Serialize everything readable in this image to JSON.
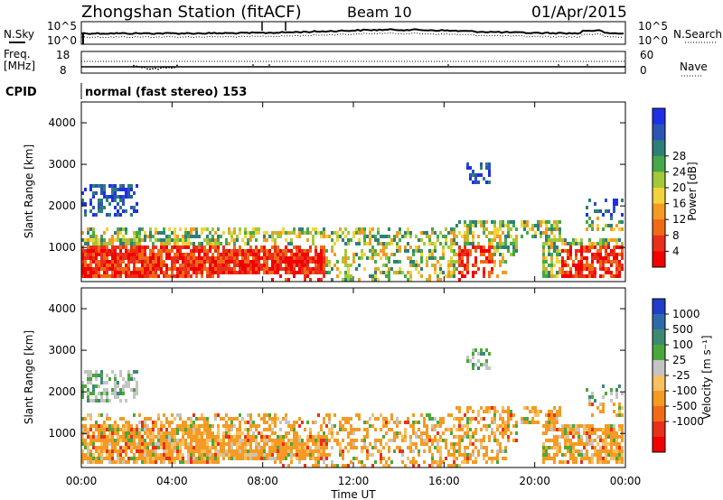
{
  "header": {
    "station": "Zhongshan Station (fitACF)",
    "beam": "Beam 10",
    "date": "01/Apr/2015"
  },
  "noise_panel": {
    "left_label": "N.Sky",
    "right_label": "N.Search",
    "tick_top": "10^5",
    "tick_bottom": "10^0"
  },
  "freq_panel": {
    "left_label_1": "Freq.",
    "left_label_2": "[MHz]",
    "right_label": "Nave",
    "left_ticks": [
      "18",
      "8"
    ],
    "right_ticks": [
      "60",
      "0"
    ]
  },
  "cpid": {
    "label": "CPID",
    "value": "normal (fast stereo) 153"
  },
  "chart_data": [
    {
      "type": "heatmap",
      "quantity": "Power",
      "ylabel": "Slant Range [km]",
      "ylim": [
        180,
        4500
      ],
      "yticks": [
        "1000",
        "2000",
        "3000",
        "4000"
      ],
      "colorbar_label": "Power [dB]",
      "colorbar_ticks": [
        "4",
        "8",
        "12",
        "16",
        "20",
        "24",
        "28"
      ],
      "colorbar_colors": [
        "#1f2fe6",
        "#2a55b5",
        "#2e7f79",
        "#46a84a",
        "#a3c83a",
        "#f2d43a",
        "#f59a23",
        "#f06a15",
        "#e8301a",
        "#f20000"
      ]
    },
    {
      "type": "heatmap",
      "quantity": "Velocity",
      "ylabel": "Slant Range [km]",
      "ylim": [
        180,
        4500
      ],
      "yticks": [
        "1000",
        "2000",
        "3000",
        "4000"
      ],
      "colorbar_label": "Velocity [m s⁻¹]",
      "colorbar_ticks": [
        "1000",
        "500",
        "100",
        "25",
        "-25",
        "-100",
        "-500",
        "-1000"
      ],
      "colorbar_colors": [
        "#1f3fc8",
        "#2f6aa8",
        "#3c8a72",
        "#4aa83a",
        "#c4c4c4",
        "#f8c060",
        "#f59a23",
        "#f26a18",
        "#e8301a",
        "#f20000"
      ]
    }
  ],
  "xaxis": {
    "label": "Time UT",
    "ticks": [
      "00:00",
      "04:00",
      "08:00",
      "12:00",
      "16:00",
      "20:00",
      "00:00"
    ]
  }
}
